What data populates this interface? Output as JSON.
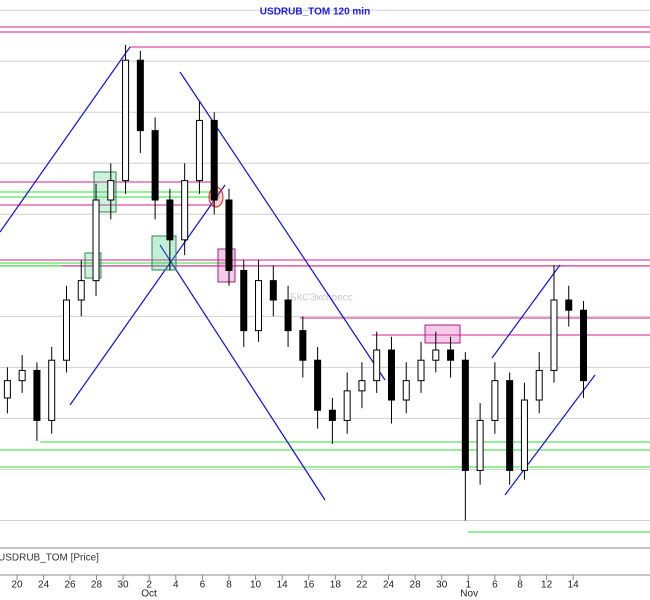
{
  "chart_data": {
    "type": "candlestick",
    "title": "USDRUB_TOM 120 min",
    "panel_label": "USDRUB_TOM [Price]",
    "watermark": "БКСЭкспресс",
    "open": [
      63.2,
      63.37,
      63.47,
      62.98,
      63.57,
      64.16,
      64.35,
      65.14,
      65.33,
      66.51,
      65.82,
      65.14,
      64.75,
      65.33,
      65.92,
      65.14,
      64.45,
      63.86,
      64.35,
      64.16,
      63.86,
      63.57,
      63.08,
      62.98,
      63.27,
      63.37,
      63.67,
      63.18,
      63.37,
      63.57,
      63.67,
      63.57,
      62.49,
      62.98,
      63.37,
      62.49,
      63.18,
      63.47,
      64.16,
      64.06
    ],
    "high": [
      63.5,
      63.62,
      63.55,
      63.7,
      64.3,
      64.55,
      65.3,
      65.5,
      66.66,
      66.6,
      65.95,
      65.25,
      65.5,
      66.1,
      66.0,
      65.25,
      64.55,
      64.55,
      64.5,
      64.3,
      64.0,
      63.7,
      63.2,
      63.45,
      63.55,
      63.85,
      63.8,
      63.55,
      63.75,
      63.85,
      63.8,
      63.65,
      63.15,
      63.55,
      63.45,
      63.35,
      63.65,
      64.5,
      64.3,
      64.15
    ],
    "low": [
      63.05,
      63.25,
      62.78,
      62.85,
      63.45,
      64.0,
      64.2,
      64.95,
      65.2,
      65.6,
      64.95,
      64.45,
      64.6,
      65.2,
      65.0,
      64.3,
      63.7,
      63.75,
      64.0,
      63.7,
      63.4,
      62.9,
      62.75,
      62.85,
      63.1,
      63.25,
      62.95,
      63.05,
      63.25,
      63.45,
      63.4,
      62.0,
      62.35,
      62.85,
      62.35,
      62.4,
      63.05,
      63.35,
      63.9,
      63.2
    ],
    "close": [
      63.37,
      63.47,
      62.98,
      63.57,
      64.16,
      64.35,
      65.14,
      65.33,
      66.51,
      65.82,
      65.14,
      64.75,
      65.33,
      65.92,
      65.14,
      64.45,
      63.86,
      64.35,
      64.16,
      63.86,
      63.57,
      63.08,
      62.98,
      63.27,
      63.37,
      63.67,
      63.18,
      63.37,
      63.57,
      63.67,
      63.57,
      62.49,
      62.98,
      63.37,
      62.49,
      63.18,
      63.47,
      64.16,
      64.06,
      63.37
    ],
    "xlim": [
      -0.5,
      43.5
    ],
    "ylim": [
      61.73,
      67.1
    ],
    "grid_levels": [
      62,
      62.5,
      63,
      63.5,
      64,
      64.5,
      65,
      65.5,
      66,
      66.5,
      67
    ],
    "xticks": [
      {
        "value": 0.65,
        "label": "20"
      },
      {
        "value": 2.45,
        "label": "24"
      },
      {
        "value": 4.24,
        "label": "26"
      },
      {
        "value": 6.03,
        "label": "28"
      },
      {
        "value": 7.83,
        "label": "30"
      },
      {
        "value": 9.6,
        "label": "2"
      },
      {
        "value": 11.4,
        "label": "4"
      },
      {
        "value": 13.2,
        "label": "6"
      },
      {
        "value": 15,
        "label": "8"
      },
      {
        "value": 16.8,
        "label": "10"
      },
      {
        "value": 18.6,
        "label": "14"
      },
      {
        "value": 20.4,
        "label": "16"
      },
      {
        "value": 22.2,
        "label": "18"
      },
      {
        "value": 24,
        "label": "22"
      },
      {
        "value": 25.8,
        "label": "24"
      },
      {
        "value": 27.6,
        "label": "28"
      },
      {
        "value": 29.4,
        "label": "30"
      },
      {
        "value": 31.2,
        "label": "1"
      },
      {
        "value": 33,
        "label": "6"
      },
      {
        "value": 34.7,
        "label": "8"
      },
      {
        "value": 36.5,
        "label": "12"
      },
      {
        "value": 38.3,
        "label": "14"
      }
    ],
    "month_labels": [
      {
        "value": 9.6,
        "label": "Oct"
      },
      {
        "value": 31.2,
        "label": "Nov"
      }
    ],
    "up_color": "#ffffff",
    "down_color": "#000000",
    "grid": true
  }
}
